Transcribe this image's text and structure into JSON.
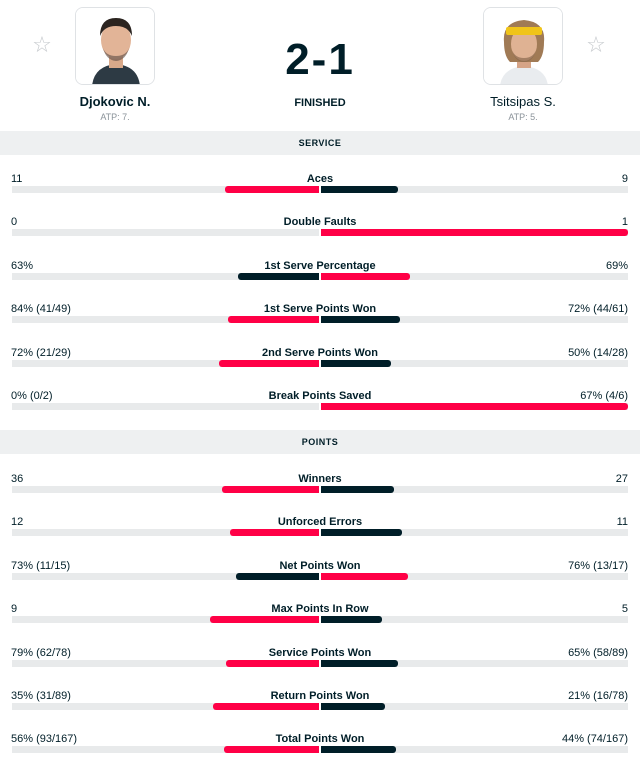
{
  "match": {
    "score": "2-1",
    "status": "FINISHED"
  },
  "home": {
    "name": "Djokovic N.",
    "rank": "ATP: 7.",
    "icon": "star-icon"
  },
  "away": {
    "name": "Tsitsipas S.",
    "rank": "ATP: 5.",
    "icon": "star-icon"
  },
  "colors": {
    "win": "#ff0046",
    "lose": "#001e28",
    "track": "#e8eaeb",
    "section": "#eef0f1"
  },
  "sections": [
    {
      "title": "SERVICE",
      "stats": [
        {
          "label": "Aces",
          "home": "11",
          "away": "9",
          "home_frac": 0.55,
          "away_frac": 0.45
        },
        {
          "label": "Double Faults",
          "home": "0",
          "away": "1",
          "home_frac": 0.0,
          "away_frac": 1.0
        },
        {
          "label": "1st Serve Percentage",
          "home": "63%",
          "away": "69%",
          "home_frac": 0.477,
          "away_frac": 0.523
        },
        {
          "label": "1st Serve Points Won",
          "home": "84% (41/49)",
          "away": "72% (44/61)",
          "home_frac": 0.538,
          "away_frac": 0.462
        },
        {
          "label": "2nd Serve Points Won",
          "home": "72% (21/29)",
          "away": "50% (14/28)",
          "home_frac": 0.59,
          "away_frac": 0.41
        },
        {
          "label": "Break Points Saved",
          "home": "0% (0/2)",
          "away": "67% (4/6)",
          "home_frac": 0.0,
          "away_frac": 1.0
        }
      ]
    },
    {
      "title": "POINTS",
      "stats": [
        {
          "label": "Winners",
          "home": "36",
          "away": "27",
          "home_frac": 0.571,
          "away_frac": 0.429
        },
        {
          "label": "Unforced Errors",
          "home": "12",
          "away": "11",
          "home_frac": 0.522,
          "away_frac": 0.478
        },
        {
          "label": "Net Points Won",
          "home": "73% (11/15)",
          "away": "76% (13/17)",
          "home_frac": 0.49,
          "away_frac": 0.51
        },
        {
          "label": "Max Points In Row",
          "home": "9",
          "away": "5",
          "home_frac": 0.643,
          "away_frac": 0.357
        },
        {
          "label": "Service Points Won",
          "home": "79% (62/78)",
          "away": "65% (58/89)",
          "home_frac": 0.549,
          "away_frac": 0.451
        },
        {
          "label": "Return Points Won",
          "home": "35% (31/89)",
          "away": "21% (16/78)",
          "home_frac": 0.625,
          "away_frac": 0.375
        },
        {
          "label": "Total Points Won",
          "home": "56% (93/167)",
          "away": "44% (74/167)",
          "home_frac": 0.56,
          "away_frac": 0.44
        }
      ]
    }
  ]
}
